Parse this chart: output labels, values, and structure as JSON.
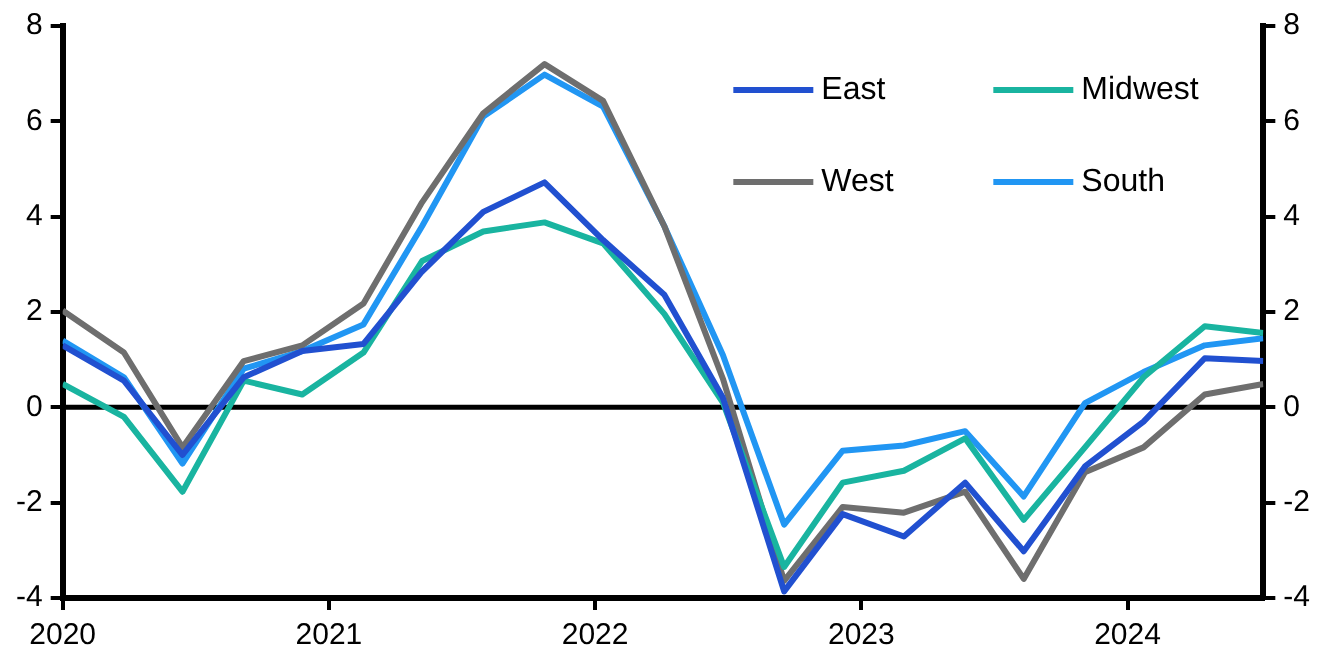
{
  "chart_data": {
    "type": "line",
    "x": [
      2020,
      2020.23,
      2020.45,
      2020.68,
      2020.9,
      2021.13,
      2021.35,
      2021.58,
      2021.81,
      2022.03,
      2022.26,
      2022.48,
      2022.71,
      2022.93,
      2023.16,
      2023.39,
      2023.61,
      2023.84,
      2024.06,
      2024.29,
      2024.51
    ],
    "series": [
      {
        "name": "East",
        "color": "#2150d0",
        "values": [
          1.3,
          0.56,
          -1.0,
          0.63,
          1.18,
          1.33,
          2.85,
          4.1,
          4.72,
          3.51,
          2.36,
          0.2,
          -3.86,
          -2.24,
          -2.71,
          -1.58,
          -3.02,
          -1.24,
          -0.3,
          1.03,
          0.97
        ]
      },
      {
        "name": "Midwest",
        "color": "#19b4a0",
        "values": [
          0.49,
          -0.2,
          -1.77,
          0.56,
          0.27,
          1.15,
          3.07,
          3.69,
          3.88,
          3.44,
          1.96,
          0.1,
          -3.35,
          -1.58,
          -1.33,
          -0.65,
          -2.36,
          -0.84,
          0.63,
          1.7,
          1.56
        ]
      },
      {
        "name": "West",
        "color": "#6e6e6e",
        "values": [
          2.03,
          1.15,
          -0.84,
          0.97,
          1.3,
          2.18,
          4.3,
          6.17,
          7.2,
          6.43,
          3.8,
          0.6,
          -3.64,
          -2.09,
          -2.21,
          -1.77,
          -3.6,
          -1.36,
          -0.84,
          0.27,
          0.49
        ]
      },
      {
        "name": "South",
        "color": "#2196f3",
        "values": [
          1.4,
          0.63,
          -1.18,
          0.81,
          1.18,
          1.74,
          3.8,
          6.1,
          6.98,
          6.31,
          3.8,
          1.1,
          -2.46,
          -0.91,
          -0.8,
          -0.5,
          -1.87,
          0.09,
          0.74,
          1.3,
          1.45
        ]
      }
    ],
    "xlim": [
      2020,
      2024.51
    ],
    "xticks": [
      2020,
      2021,
      2022,
      2023,
      2024
    ],
    "ylim": [
      -4,
      8
    ],
    "yticks": [
      -4,
      -2,
      0,
      2,
      4,
      6,
      8
    ],
    "y2lim": [
      -4,
      8
    ],
    "y2ticks": [
      -4,
      -2,
      0,
      2,
      4,
      6,
      8
    ],
    "ref_lines": [
      {
        "axis": "y",
        "value": 0,
        "color": "#000000"
      }
    ],
    "grid": false,
    "legend": "top right",
    "marker": "none",
    "line_style": "solid"
  }
}
